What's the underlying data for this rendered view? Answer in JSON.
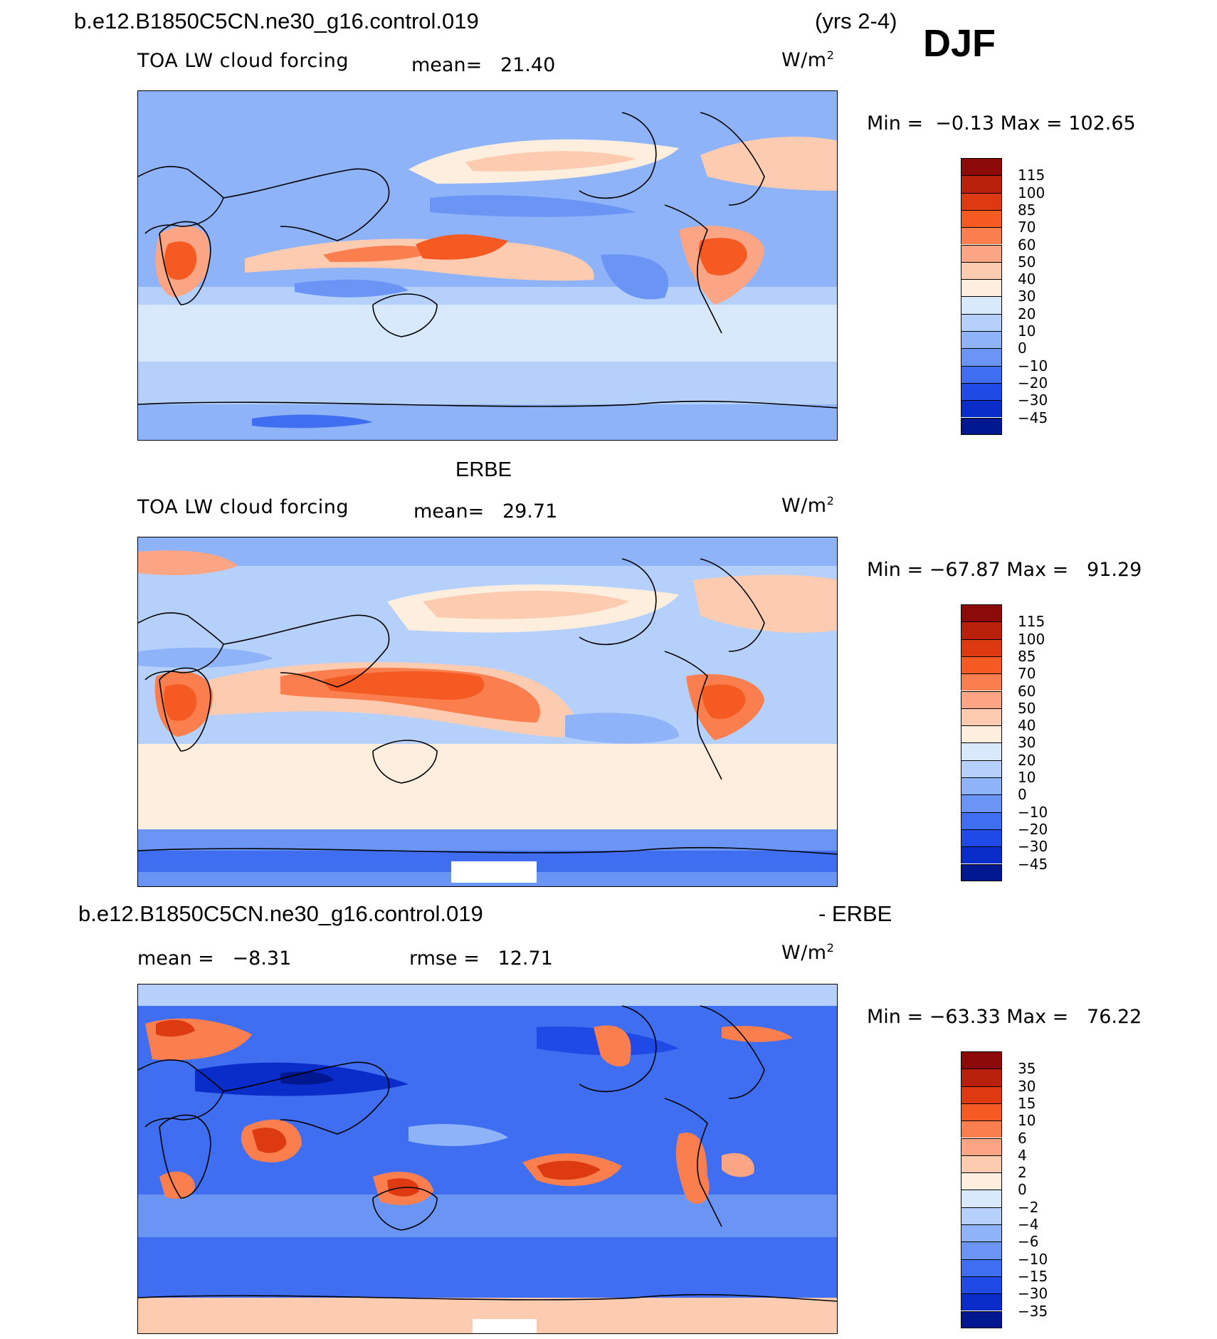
{
  "header": {
    "case_name": "b.e12.B1850C5CN.ne30_g16.control.019",
    "years": "(yrs 2-4)",
    "season": "DJF"
  },
  "panels": [
    {
      "id": "model",
      "title": "",
      "variable": "TOA LW cloud forcing",
      "stat_label": "mean=",
      "stat_value": "21.40",
      "units": "W/m",
      "units_exp": "2",
      "min_label": "Min =",
      "min_value": "−0.13",
      "max_label": "Max =",
      "max_value": "102.65",
      "levels": [
        "115",
        "100",
        "85",
        "70",
        "60",
        "50",
        "40",
        "30",
        "20",
        "10",
        "0",
        "−10",
        "−20",
        "−30",
        "−45"
      ]
    },
    {
      "id": "obs",
      "title": "ERBE",
      "variable": "TOA LW cloud forcing",
      "stat_label": "mean=",
      "stat_value": "29.71",
      "units": "W/m",
      "units_exp": "2",
      "min_label": "Min =",
      "min_value": "−67.87",
      "max_label": "Max =",
      "max_value": "91.29",
      "levels": [
        "115",
        "100",
        "85",
        "70",
        "60",
        "50",
        "40",
        "30",
        "20",
        "10",
        "0",
        "−10",
        "−20",
        "−30",
        "−45"
      ]
    },
    {
      "id": "diff",
      "title_left": "b.e12.B1850C5CN.ne30_g16.control.019",
      "title_right": "- ERBE",
      "stat_label": "mean =",
      "stat_value": "−8.31",
      "stat2_label": "rmse =",
      "stat2_value": "12.71",
      "units": "W/m",
      "units_exp": "2",
      "min_label": "Min =",
      "min_value": "−63.33",
      "max_label": "Max =",
      "max_value": "76.22",
      "levels": [
        "35",
        "30",
        "15",
        "10",
        "6",
        "4",
        "2",
        "0",
        "−2",
        "−4",
        "−6",
        "−10",
        "−15",
        "−30",
        "−35"
      ]
    }
  ],
  "colorbar_colors": [
    "#8c0a0a",
    "#b8200c",
    "#dd3a12",
    "#f45a22",
    "#fb7e4e",
    "#fca585",
    "#fdcbb0",
    "#fdeedd",
    "#d7e9fb",
    "#b5d1fb",
    "#8fb3f8",
    "#6a95f5",
    "#3f6ff0",
    "#1f4ae6",
    "#0a2cc8",
    "#00188f"
  ]
}
